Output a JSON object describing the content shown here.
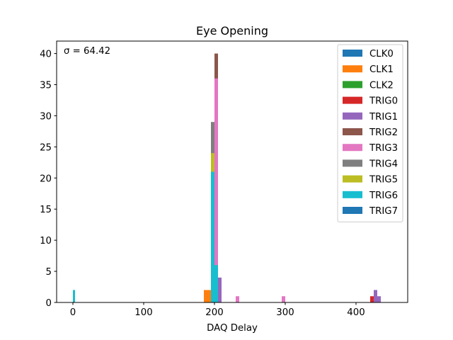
{
  "chart_data": {
    "type": "histogram",
    "title": "Eye Opening",
    "xlabel": "DAQ Delay",
    "ylabel": "",
    "xlim": [
      -23,
      473
    ],
    "ylim": [
      0,
      42
    ],
    "xticks": [
      0,
      100,
      200,
      300,
      400
    ],
    "yticks": [
      0,
      5,
      10,
      15,
      20,
      25,
      30,
      35,
      40
    ],
    "grid": false,
    "legend_position": "top-right",
    "annotation": "σ = 64.42",
    "series": [
      {
        "name": "CLK0",
        "color": "#1f77b4",
        "bins": []
      },
      {
        "name": "CLK1",
        "color": "#ff7f0e",
        "bins": [
          {
            "x0": 185,
            "x1": 195,
            "count": 2
          }
        ]
      },
      {
        "name": "CLK2",
        "color": "#2ca02c",
        "bins": []
      },
      {
        "name": "TRIG0",
        "color": "#d62728",
        "bins": [
          {
            "x0": 420,
            "x1": 425,
            "count": 1
          }
        ]
      },
      {
        "name": "TRIG1",
        "color": "#9467bd",
        "bins": [
          {
            "x0": 205,
            "x1": 210,
            "count": 4
          },
          {
            "x0": 425,
            "x1": 430,
            "count": 2
          },
          {
            "x0": 430,
            "x1": 435,
            "count": 1
          }
        ]
      },
      {
        "name": "TRIG2",
        "color": "#8c564b",
        "bins": [
          {
            "x0": 200,
            "x1": 205,
            "count": 40
          }
        ]
      },
      {
        "name": "TRIG3",
        "color": "#e377c2",
        "bins": [
          {
            "x0": 200,
            "x1": 205,
            "count": 36
          },
          {
            "x0": 230,
            "x1": 235,
            "count": 1
          },
          {
            "x0": 295,
            "x1": 300,
            "count": 1
          }
        ]
      },
      {
        "name": "TRIG4",
        "color": "#7f7f7f",
        "bins": [
          {
            "x0": 195,
            "x1": 200,
            "count": 29
          }
        ]
      },
      {
        "name": "TRIG5",
        "color": "#bcbd22",
        "bins": [
          {
            "x0": 195,
            "x1": 200,
            "count": 24
          }
        ]
      },
      {
        "name": "TRIG6",
        "color": "#17becf",
        "bins": [
          {
            "x0": 0,
            "x1": 3,
            "count": 2
          },
          {
            "x0": 195,
            "x1": 200,
            "count": 21
          },
          {
            "x0": 200,
            "x1": 205,
            "count": 6
          }
        ]
      },
      {
        "name": "TRIG7",
        "color": "#1f77b4",
        "bins": []
      }
    ]
  }
}
